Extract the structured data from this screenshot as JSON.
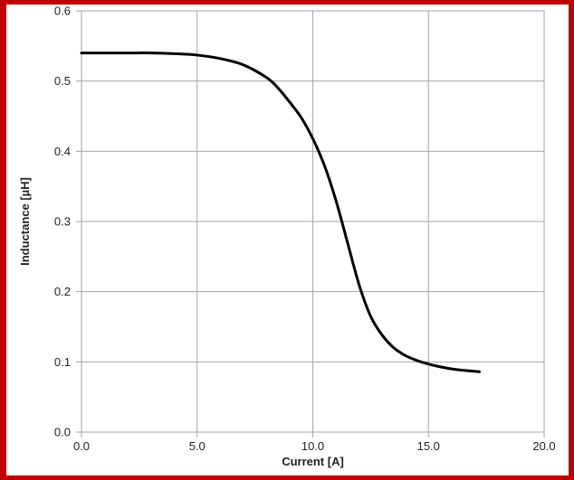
{
  "colors": {
    "frame": "#c00000",
    "grid": "#a6a6a6",
    "line": "#000000",
    "text": "#222222"
  },
  "chart_data": {
    "type": "line",
    "title": "",
    "xlabel": "Current [A]",
    "ylabel": "Inductance [µH]",
    "xlim": [
      0,
      20
    ],
    "ylim": [
      0,
      0.6
    ],
    "grid": true,
    "legend": "none",
    "x_ticks": [
      "0.0",
      "5.0",
      "10.0",
      "15.0",
      "20.0"
    ],
    "y_ticks": [
      "0.0",
      "0.1",
      "0.2",
      "0.3",
      "0.4",
      "0.5",
      "0.6"
    ],
    "series": [
      {
        "color": "#000000",
        "x": [
          0,
          1,
          2,
          3,
          4,
          5,
          6,
          7,
          8,
          8.5,
          9,
          9.5,
          10,
          10.5,
          11,
          11.5,
          12,
          12.5,
          13,
          13.5,
          14,
          14.5,
          15,
          15.5,
          16,
          16.5,
          17.2
        ],
        "y": [
          0.54,
          0.54,
          0.54,
          0.54,
          0.539,
          0.537,
          0.532,
          0.523,
          0.505,
          0.49,
          0.47,
          0.448,
          0.418,
          0.38,
          0.33,
          0.27,
          0.21,
          0.165,
          0.138,
          0.12,
          0.109,
          0.102,
          0.097,
          0.093,
          0.09,
          0.088,
          0.086
        ]
      }
    ]
  }
}
